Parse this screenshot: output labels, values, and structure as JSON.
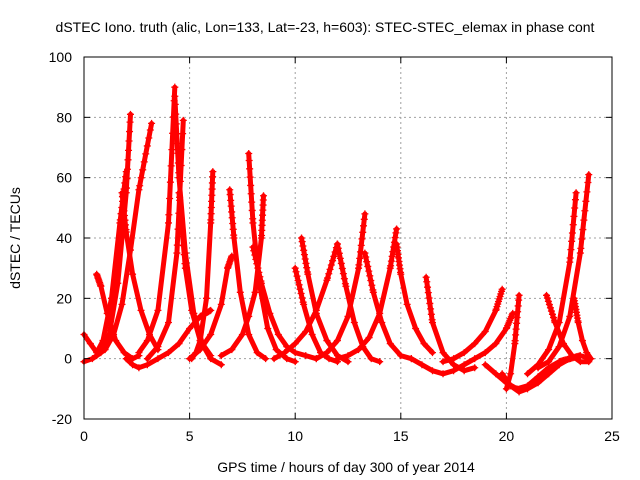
{
  "chart_data": {
    "type": "scatter",
    "title": "dSTEC Iono. truth (alic, Lon=133, Lat=-23, h=603): STEC-STEC_elemax in phase cont",
    "xlabel": "GPS time / hours of day 300 of year 2014",
    "ylabel": "dSTEC  / TECUs",
    "xlim": [
      0,
      25
    ],
    "ylim": [
      -20,
      100
    ],
    "xticks": [
      0,
      5,
      10,
      15,
      20,
      25
    ],
    "yticks": [
      -20,
      0,
      20,
      40,
      60,
      80,
      100
    ],
    "grid": true,
    "marker": "plus",
    "color": "#ff0000",
    "series": [
      {
        "x": [
          0.0,
          0.4,
          0.8,
          1.2,
          1.6,
          2.0,
          2.2
        ],
        "y": [
          -1,
          0,
          2,
          8,
          25,
          55,
          81
        ]
      },
      {
        "x": [
          0.0,
          0.3,
          0.6,
          0.9,
          1.3,
          1.7,
          2.0
        ],
        "y": [
          8,
          5,
          2,
          6,
          20,
          45,
          62
        ]
      },
      {
        "x": [
          0.6,
          0.8,
          1.1,
          1.5,
          1.9,
          2.3,
          2.6
        ],
        "y": [
          28,
          24,
          15,
          6,
          2,
          0,
          1
        ]
      },
      {
        "x": [
          0.6,
          1.0,
          1.4,
          1.8,
          2.2,
          2.6,
          3.2
        ],
        "y": [
          1,
          3,
          8,
          18,
          36,
          56,
          78
        ]
      },
      {
        "x": [
          1.8,
          2.0,
          2.3,
          2.7,
          3.1,
          3.5
        ],
        "y": [
          55,
          42,
          28,
          16,
          8,
          3
        ]
      },
      {
        "x": [
          2.0,
          2.3,
          2.6,
          3.0,
          3.5,
          4.0,
          4.5,
          5.0,
          5.5,
          6.0
        ],
        "y": [
          0,
          -2,
          -3,
          -2,
          0,
          2,
          5,
          10,
          14,
          16
        ]
      },
      {
        "x": [
          2.6,
          3.0,
          3.5,
          4.0,
          4.3
        ],
        "y": [
          2,
          6,
          16,
          45,
          90
        ]
      },
      {
        "x": [
          3.0,
          3.5,
          4.0,
          4.4,
          4.7
        ],
        "y": [
          0,
          4,
          12,
          35,
          79
        ]
      },
      {
        "x": [
          4.3,
          4.5,
          4.8,
          5.2,
          5.6,
          6.0
        ],
        "y": [
          87,
          60,
          35,
          15,
          5,
          1
        ]
      },
      {
        "x": [
          4.5,
          4.8,
          5.1,
          5.5,
          6.0,
          6.5
        ],
        "y": [
          55,
          30,
          16,
          6,
          0,
          -2
        ]
      },
      {
        "x": [
          5.1,
          5.3,
          5.5,
          5.8,
          6.0,
          6.1
        ],
        "y": [
          0,
          2,
          6,
          20,
          45,
          62
        ]
      },
      {
        "x": [
          5.0,
          5.5,
          6.0,
          6.5,
          6.8,
          7.0
        ],
        "y": [
          0,
          3,
          8,
          18,
          30,
          34
        ]
      },
      {
        "x": [
          6.9,
          7.1,
          7.4,
          7.8,
          8.2,
          8.6
        ],
        "y": [
          56,
          40,
          22,
          8,
          2,
          0
        ]
      },
      {
        "x": [
          7.8,
          8.0,
          8.3,
          8.7,
          9.1,
          9.6,
          10.0
        ],
        "y": [
          68,
          45,
          25,
          10,
          3,
          0,
          -1
        ]
      },
      {
        "x": [
          6.5,
          7.0,
          7.5,
          7.8,
          8.1,
          8.4,
          8.5
        ],
        "y": [
          1,
          3,
          8,
          14,
          22,
          40,
          54
        ]
      },
      {
        "x": [
          8.0,
          8.4,
          8.8,
          9.2,
          9.6,
          10.0,
          10.5,
          11.0
        ],
        "y": [
          37,
          25,
          15,
          8,
          4,
          2,
          1,
          0
        ]
      },
      {
        "x": [
          10.0,
          10.4,
          10.8,
          11.2,
          11.6,
          12.0
        ],
        "y": [
          30,
          18,
          8,
          2,
          0,
          -1
        ]
      },
      {
        "x": [
          10.3,
          10.6,
          11.0,
          11.5,
          12.0,
          12.5
        ],
        "y": [
          40,
          28,
          15,
          6,
          1,
          -1
        ]
      },
      {
        "x": [
          9.0,
          9.5,
          10.0,
          10.5,
          11.0,
          11.5,
          12.0
        ],
        "y": [
          0,
          2,
          5,
          9,
          16,
          26,
          38
        ]
      },
      {
        "x": [
          12.0,
          12.4,
          12.8,
          13.2,
          13.6,
          14.0
        ],
        "y": [
          38,
          24,
          12,
          4,
          0,
          -1
        ]
      },
      {
        "x": [
          11.0,
          11.5,
          12.0,
          12.5,
          13.0,
          13.3
        ],
        "y": [
          0,
          2,
          6,
          14,
          30,
          48
        ]
      },
      {
        "x": [
          13.3,
          13.7,
          14.1,
          14.5,
          15.0,
          15.5
        ],
        "y": [
          35,
          22,
          12,
          5,
          1,
          0
        ]
      },
      {
        "x": [
          12.0,
          12.5,
          13.0,
          13.5,
          14.0,
          14.5,
          14.8
        ],
        "y": [
          0,
          1,
          3,
          7,
          15,
          30,
          43
        ]
      },
      {
        "x": [
          14.8,
          15.0,
          15.3,
          15.7,
          16.1,
          16.5
        ],
        "y": [
          38,
          28,
          18,
          10,
          5,
          2
        ]
      },
      {
        "x": [
          16.2,
          16.5,
          17.0,
          17.5,
          18.0,
          18.5
        ],
        "y": [
          27,
          12,
          2,
          -2,
          -4,
          -3
        ]
      },
      {
        "x": [
          15.5,
          16.0,
          16.5,
          17.0,
          17.5,
          18.0,
          18.5,
          19.0,
          19.5,
          20.0,
          20.3
        ],
        "y": [
          0,
          -2,
          -4,
          -5,
          -4,
          -2,
          0,
          2,
          5,
          10,
          15
        ]
      },
      {
        "x": [
          17.0,
          17.5,
          18.0,
          18.5,
          19.0,
          19.5,
          19.8
        ],
        "y": [
          -1,
          0,
          2,
          5,
          9,
          16,
          23
        ]
      },
      {
        "x": [
          19.0,
          19.5,
          20.0,
          20.5,
          21.0,
          21.5,
          22.0,
          22.5,
          23.0
        ],
        "y": [
          -2,
          -5,
          -8,
          -10,
          -9,
          -6,
          -3,
          -1,
          0
        ]
      },
      {
        "x": [
          19.8,
          20.2,
          20.6,
          21.0,
          21.5,
          22.0,
          22.5,
          23.0,
          23.5,
          24.0
        ],
        "y": [
          -5,
          -9,
          -11,
          -10,
          -8,
          -5,
          -2,
          0,
          1,
          0
        ]
      },
      {
        "x": [
          20.0,
          20.2,
          20.4,
          20.6
        ],
        "y": [
          -10,
          -5,
          5,
          21
        ]
      },
      {
        "x": [
          21.0,
          21.5,
          22.0,
          22.5,
          23.0,
          23.3
        ],
        "y": [
          -5,
          -2,
          3,
          12,
          32,
          55
        ]
      },
      {
        "x": [
          21.5,
          22.0,
          22.5,
          23.0,
          23.5,
          23.9
        ],
        "y": [
          -3,
          -1,
          4,
          14,
          35,
          61
        ]
      },
      {
        "x": [
          21.9,
          22.3,
          22.7,
          23.1,
          23.5,
          23.9
        ],
        "y": [
          21,
          12,
          5,
          1,
          -1,
          -1
        ]
      },
      {
        "x": [
          23.2,
          23.4,
          23.6,
          23.8,
          24.0
        ],
        "y": [
          20,
          12,
          6,
          2,
          0
        ]
      }
    ]
  }
}
